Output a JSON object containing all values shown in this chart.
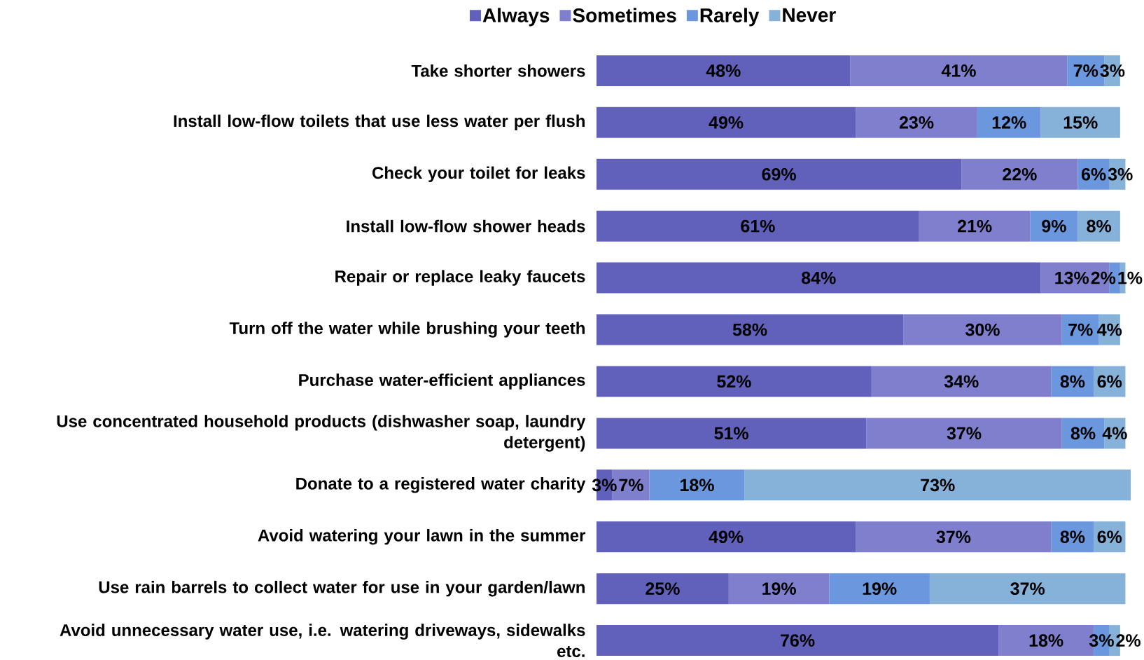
{
  "chart_data": {
    "type": "bar",
    "orientation": "horizontal",
    "stacked": true,
    "legend": "top",
    "tick_labels": "y",
    "xlim": [
      0,
      101
    ],
    "categories": [
      "Take shorter showers",
      "Install low-flow toilets that use less water per flush",
      "Check your toilet for leaks",
      "Install low-flow shower heads",
      "Repair or replace leaky faucets",
      "Turn off the water while brushing your teeth",
      "Purchase water-efficient appliances",
      "Use concentrated household products (dishwasher soap, laundry detergent)",
      "Donate to a registered water charity",
      "Avoid watering your lawn in the summer",
      "Use rain barrels to collect water for use in your garden/lawn",
      "Avoid unnecessary water use, i.e. watering driveways, sidewalks etc."
    ],
    "series": [
      {
        "name": "Always",
        "color": "#6161bb",
        "values": [
          48,
          49,
          69,
          61,
          84,
          58,
          52,
          51,
          3,
          49,
          25,
          76
        ],
        "value_labels": [
          "48%",
          "49%",
          "69%",
          "61%",
          "84%",
          "58%",
          "52%",
          "51%",
          "3%",
          "49%",
          "25%",
          "76%"
        ]
      },
      {
        "name": "Sometimes",
        "color": "#7f7fcd",
        "values": [
          41,
          23,
          22,
          21,
          13,
          30,
          34,
          37,
          7,
          37,
          19,
          18
        ],
        "value_labels": [
          "41%",
          "23%",
          "22%",
          "21%",
          "13%",
          "30%",
          "34%",
          "37%",
          "7%",
          "37%",
          "19%",
          "18%"
        ]
      },
      {
        "name": "Rarely",
        "color": "#6a97dd",
        "values": [
          7,
          12,
          6,
          9,
          2,
          7,
          8,
          8,
          18,
          8,
          19,
          3
        ],
        "value_labels": [
          "7%",
          "12%",
          "6%",
          "9%",
          "2%",
          "7%",
          "8%",
          "8%",
          "18%",
          "8%",
          "19%",
          "3%"
        ]
      },
      {
        "name": "Never",
        "color": "#86b1d9",
        "values": [
          3,
          15,
          3,
          8,
          1,
          4,
          6,
          4,
          73,
          6,
          37,
          2
        ],
        "value_labels": [
          "3%",
          "15%",
          "3%",
          "8%",
          "1%",
          "4%",
          "6%",
          "4%",
          "73%",
          "6%",
          "37%",
          "2%"
        ]
      }
    ]
  }
}
